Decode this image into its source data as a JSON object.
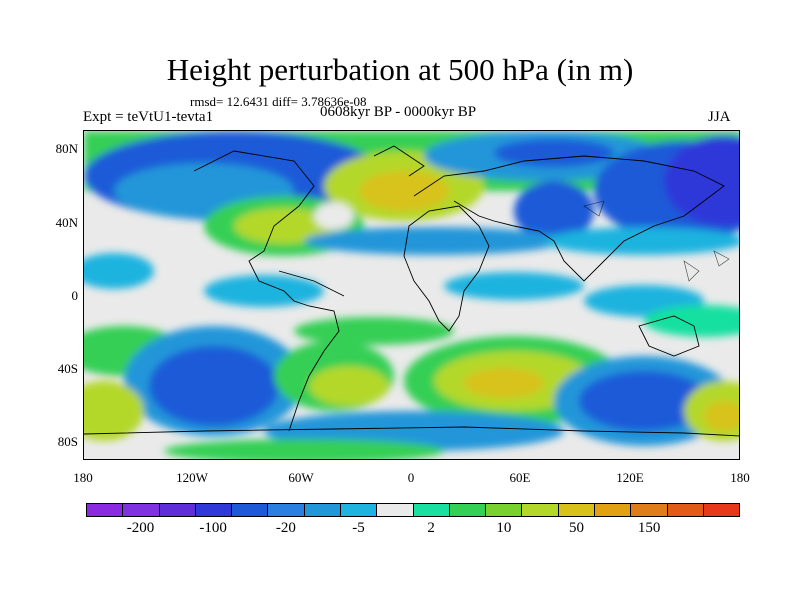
{
  "title": "Height perturbation at 500 hPa (in m)",
  "stats": "rmsd= 12.6431 diff= 3.78636e-08",
  "experiment": "Expt = teVtU1-tevta1",
  "period": "0608kyr BP - 0000kyr BP",
  "season": "JJA",
  "lat_labels": [
    "80N",
    "40N",
    "0",
    "40S",
    "80S"
  ],
  "lon_labels": [
    "180",
    "120W",
    "60W",
    "0",
    "60E",
    "120E",
    "180"
  ],
  "colorbar": {
    "colors": [
      "#8a2be2",
      "#7f32e0",
      "#5f2ed9",
      "#2f38d9",
      "#1e5ad8",
      "#2a7fe0",
      "#2196d9",
      "#1fb3df",
      "#eaeaea",
      "#19e0a0",
      "#34cf55",
      "#78d12e",
      "#b4d82a",
      "#d8c21a",
      "#e2a013",
      "#df7d1a",
      "#e25a17",
      "#e8381b"
    ],
    "labels": [
      "-200",
      "-100",
      "-20",
      "-5",
      "2",
      "10",
      "50",
      "150"
    ]
  }
}
